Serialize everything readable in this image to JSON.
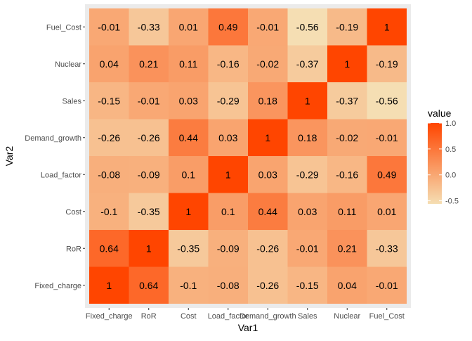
{
  "chart_data": {
    "type": "heatmap",
    "xlabel": "Var1",
    "ylabel": "Var2",
    "x_categories": [
      "Fixed_charge",
      "RoR",
      "Cost",
      "Load_factor",
      "Demand_growth",
      "Sales",
      "Nuclear",
      "Fuel_Cost"
    ],
    "y_categories": [
      "Fixed_charge",
      "RoR",
      "Cost",
      "Load_factor",
      "Demand_growth",
      "Sales",
      "Nuclear",
      "Fuel_Cost"
    ],
    "values": [
      [
        1,
        0.64,
        -0.1,
        -0.08,
        -0.26,
        -0.15,
        0.04,
        -0.01
      ],
      [
        0.64,
        1,
        -0.35,
        -0.09,
        -0.26,
        -0.01,
        0.21,
        -0.33
      ],
      [
        -0.1,
        -0.35,
        1,
        0.1,
        0.44,
        0.03,
        0.11,
        0.01
      ],
      [
        -0.08,
        -0.09,
        0.1,
        1,
        0.03,
        -0.29,
        -0.16,
        0.49
      ],
      [
        -0.26,
        -0.26,
        0.44,
        0.03,
        1,
        0.18,
        -0.02,
        -0.01
      ],
      [
        -0.15,
        -0.01,
        0.03,
        -0.29,
        0.18,
        1,
        -0.37,
        -0.56
      ],
      [
        0.04,
        0.21,
        0.11,
        -0.16,
        -0.02,
        -0.37,
        1,
        -0.19
      ],
      [
        -0.01,
        -0.33,
        0.01,
        0.49,
        -0.01,
        -0.56,
        -0.19,
        1
      ]
    ],
    "values_note": "values[row][col]: row indexes y_categories (bottom to top), col indexes x_categories",
    "legend": {
      "title": "value",
      "ticks": [
        "1.0",
        "0.5",
        "0.0",
        "-0.5"
      ],
      "tick_values": [
        1.0,
        0.5,
        0.0,
        -0.5
      ],
      "range": [
        -0.56,
        1.0
      ],
      "low_color": "#f5deb3",
      "high_color": "#ff4500",
      "placement": "right"
    },
    "panel_background": "#ebebeb",
    "grid": true
  }
}
